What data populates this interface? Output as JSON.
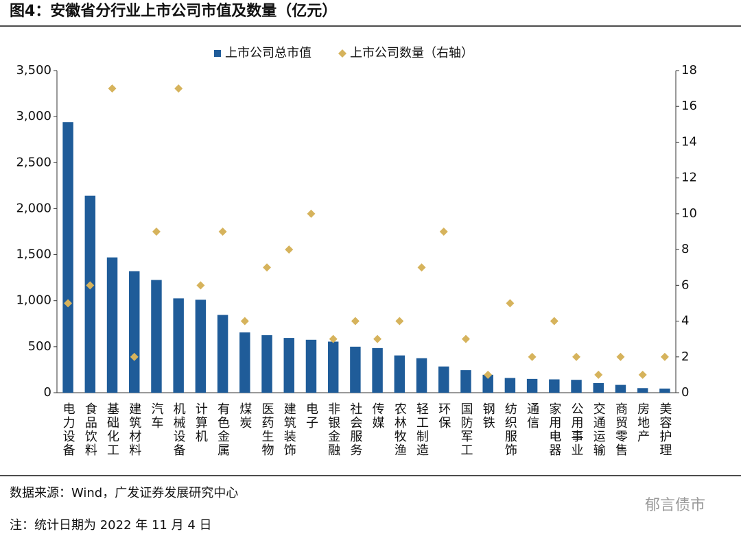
{
  "chart_data": {
    "type": "bar",
    "title": "图4：安徽省分行业上市公司市值及数量（亿元）",
    "source": "数据来源：Wind，广发证券发展研究中心",
    "note": "注：统计日期为 2022 年 11 月 4 日",
    "watermark": "郁言债市",
    "categories": [
      "电力设备",
      "食品饮料",
      "基础化工",
      "建筑材料",
      "汽车",
      "机械设备",
      "计算机",
      "有色金属",
      "煤炭",
      "医药生物",
      "建筑装饰",
      "电子",
      "非银金融",
      "社会服务",
      "传媒",
      "农林牧渔",
      "轻工制造",
      "环保",
      "国防军工",
      "钢铁",
      "纺织服饰",
      "通信",
      "家用电器",
      "公用事业",
      "交通运输",
      "商贸零售",
      "房地产",
      "美容护理"
    ],
    "series": [
      {
        "name": "上市公司总市值",
        "type": "bar",
        "color": "#1f5c99",
        "values": [
          2940,
          2140,
          1470,
          1320,
          1225,
          1025,
          1010,
          845,
          655,
          625,
          595,
          575,
          555,
          500,
          485,
          405,
          375,
          285,
          245,
          195,
          160,
          150,
          145,
          140,
          105,
          85,
          50,
          45
        ]
      },
      {
        "name": "上市公司数量（右轴）",
        "type": "scatter",
        "axis": "y2",
        "color": "#d6b35c",
        "values": [
          5,
          6,
          17,
          2,
          9,
          17,
          6,
          9,
          4,
          7,
          8,
          10,
          3,
          4,
          3,
          4,
          7,
          9,
          3,
          1,
          5,
          2,
          4,
          2,
          1,
          2,
          1,
          2
        ]
      }
    ],
    "ylim": [
      0,
      3500
    ],
    "yticks": [
      0,
      500,
      {
        "value": 1000,
        "label": "1,000"
      },
      {
        "value": 1500,
        "label": "1,500"
      },
      {
        "value": 2000,
        "label": "2,000"
      },
      {
        "value": 2500,
        "label": "2,500"
      },
      {
        "value": 3000,
        "label": "3,000"
      },
      {
        "value": 3500,
        "label": "3,500"
      }
    ],
    "y2lim": [
      0,
      18
    ],
    "y2ticks": [
      0,
      2,
      4,
      6,
      8,
      10,
      12,
      14,
      16,
      18
    ],
    "legend": "top"
  }
}
